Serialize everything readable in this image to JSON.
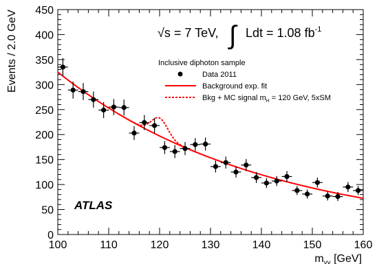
{
  "chart_data": {
    "type": "scatter",
    "ylabel": "Events / 2.0 GeV",
    "xlabel_main": "m",
    "xlabel_sub": "γγ",
    "xlabel_unit": " [GeV]",
    "xlim": [
      100,
      160
    ],
    "ylim": [
      0,
      450
    ],
    "x_ticks": [
      "100",
      "110",
      "120",
      "130",
      "140",
      "150",
      "160"
    ],
    "y_ticks": [
      "0",
      "50",
      "100",
      "150",
      "200",
      "250",
      "300",
      "350",
      "400",
      "450"
    ],
    "energy_text": "√s = 7 TeV,",
    "lumi_text": "Ldt = 1.08 fb",
    "lumi_sup": "-1",
    "atlas_label": "ATLAS",
    "legend": {
      "title": "Inclusive diphoton sample",
      "entries": [
        {
          "label": "Data 2011",
          "style": "marker",
          "color": "#000000"
        },
        {
          "label": "Background exp. fit",
          "style": "solid",
          "color": "#ff0000"
        },
        {
          "label": "Bkg + MC signal m",
          "label_sub": "H",
          "label_tail": " = 120 GeV, 5xSM",
          "style": "dashed",
          "color": "#ff0000"
        }
      ]
    },
    "series": [
      {
        "kind": "data",
        "x": [
          101,
          103,
          105,
          107,
          109,
          111,
          113,
          115,
          117,
          119,
          121,
          123,
          125,
          127,
          129,
          131,
          133,
          135,
          137,
          139,
          141,
          143,
          145,
          147,
          149,
          151,
          153,
          155,
          157,
          159
        ],
        "y": [
          335,
          289,
          286,
          270,
          249,
          255,
          254,
          203,
          224,
          218,
          174,
          166,
          172,
          180,
          181,
          136,
          144,
          125,
          139,
          114,
          103,
          107,
          116,
          88,
          81,
          104,
          77,
          76,
          95,
          88
        ],
        "yerr": [
          18,
          17,
          17,
          16,
          16,
          16,
          16,
          14,
          15,
          15,
          13,
          13,
          13,
          13,
          13,
          12,
          12,
          11,
          12,
          11,
          10,
          10,
          11,
          9,
          9,
          10,
          9,
          9,
          10,
          9
        ]
      },
      {
        "kind": "fit",
        "function": "exp",
        "amplitude_at_100": 325,
        "slope": 0.025,
        "color": "#ff0000"
      },
      {
        "kind": "signal",
        "mass": 120,
        "sigma": 1.6,
        "amplitude": 36,
        "color": "#ff0000"
      }
    ]
  }
}
